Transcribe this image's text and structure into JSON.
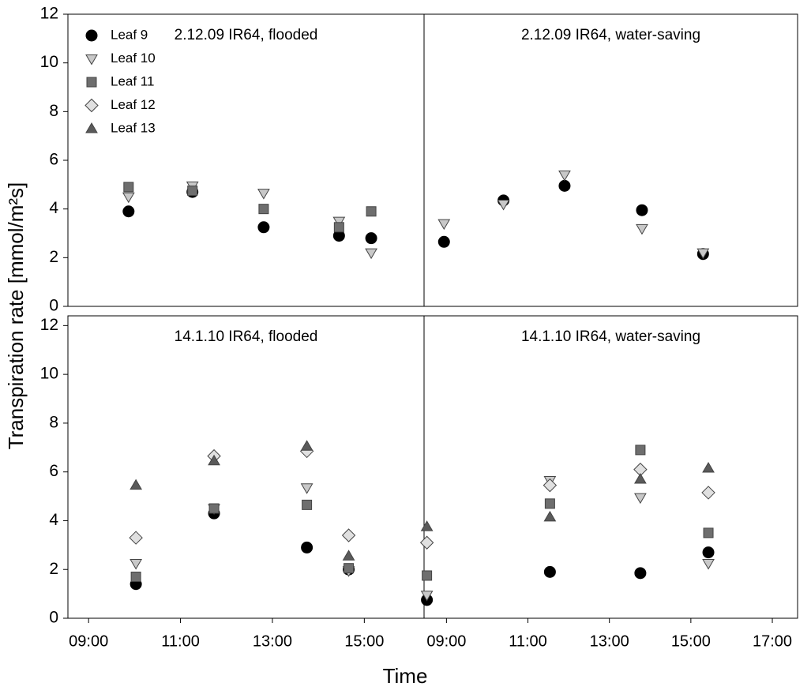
{
  "y_label": "Transpiration rate [mmol/m²s]",
  "x_label": "Time",
  "chart_data": [
    {
      "type": "scatter",
      "title": "2.12.09 IR64, flooded",
      "legend": "upper left",
      "x": [
        9.87,
        11.26,
        12.81,
        14.45,
        15.15
      ],
      "xlim": [
        8.55,
        16.3
      ],
      "ylim": [
        0,
        12
      ],
      "yticks": [
        0,
        2,
        4,
        6,
        8,
        10,
        12
      ],
      "series": [
        {
          "name": "Leaf 9",
          "marker": "circle",
          "color": "#000000",
          "values": [
            3.9,
            4.7,
            3.25,
            2.9,
            2.8
          ]
        },
        {
          "name": "Leaf 10",
          "marker": "triangle-down",
          "color": "#c8c8c8",
          "values": [
            4.5,
            4.95,
            4.65,
            3.5,
            2.2
          ]
        },
        {
          "name": "Leaf 11",
          "marker": "square",
          "color": "#6e6e6e",
          "values": [
            4.9,
            4.75,
            4.0,
            3.25,
            3.9
          ]
        },
        {
          "name": "Leaf 12",
          "marker": "diamond",
          "color": "#e0e0e0",
          "values": [
            null,
            null,
            null,
            null,
            null
          ]
        },
        {
          "name": "Leaf 13",
          "marker": "triangle-up",
          "color": "#5a5a5a",
          "values": [
            null,
            null,
            null,
            null,
            null
          ]
        }
      ]
    },
    {
      "type": "scatter",
      "title": "2.12.09 IR64, water-saving",
      "x": [
        8.94,
        10.4,
        11.9,
        13.8,
        15.3
      ],
      "xlim": [
        8.45,
        17.62
      ],
      "ylim": [
        0,
        12
      ],
      "series": [
        {
          "name": "Leaf 9",
          "marker": "circle",
          "color": "#000000",
          "values": [
            2.65,
            4.35,
            4.95,
            3.95,
            2.15
          ]
        },
        {
          "name": "Leaf 10",
          "marker": "triangle-down",
          "color": "#c8c8c8",
          "values": [
            3.4,
            4.2,
            5.4,
            3.2,
            2.2
          ]
        }
      ]
    },
    {
      "type": "scatter",
      "title": "14.1.10 IR64, flooded",
      "x": [
        10.03,
        11.73,
        13.75,
        14.66
      ],
      "xlim": [
        8.55,
        16.3
      ],
      "ylim": [
        0,
        12.4
      ],
      "yticks": [
        0,
        2,
        4,
        6,
        8,
        10,
        12
      ],
      "xticks": [
        {
          "value": 9,
          "label": "09:00"
        },
        {
          "value": 11,
          "label": "11:00"
        },
        {
          "value": 13,
          "label": "13:00"
        },
        {
          "value": 15,
          "label": "15:00"
        }
      ],
      "series": [
        {
          "name": "Leaf 9",
          "marker": "circle",
          "color": "#000000",
          "values": [
            1.4,
            4.3,
            2.9,
            2.0
          ]
        },
        {
          "name": "Leaf 10",
          "marker": "triangle-down",
          "color": "#c8c8c8",
          "values": [
            2.25,
            4.5,
            5.35,
            1.95
          ]
        },
        {
          "name": "Leaf 11",
          "marker": "square",
          "color": "#6e6e6e",
          "values": [
            1.7,
            4.5,
            4.65,
            2.05
          ]
        },
        {
          "name": "Leaf 12",
          "marker": "diamond",
          "color": "#e0e0e0",
          "values": [
            3.3,
            6.65,
            6.85,
            3.4
          ]
        },
        {
          "name": "Leaf 13",
          "marker": "triangle-up",
          "color": "#5a5a5a",
          "values": [
            5.45,
            6.45,
            7.05,
            2.55
          ]
        }
      ]
    },
    {
      "type": "scatter",
      "title": "14.1.10 IR64, water-saving",
      "x": [
        8.52,
        11.54,
        13.76,
        15.43
      ],
      "xlim": [
        8.45,
        17.62
      ],
      "ylim": [
        0,
        12.4
      ],
      "xticks": [
        {
          "value": 9,
          "label": "09:00"
        },
        {
          "value": 11,
          "label": "11:00"
        },
        {
          "value": 13,
          "label": "13:00"
        },
        {
          "value": 15,
          "label": "15:00"
        },
        {
          "value": 17,
          "label": "17:00"
        }
      ],
      "series": [
        {
          "name": "Leaf 9",
          "marker": "circle",
          "color": "#000000",
          "values": [
            0.75,
            1.9,
            1.85,
            2.7
          ]
        },
        {
          "name": "Leaf 10",
          "marker": "triangle-down",
          "color": "#c8c8c8",
          "values": [
            0.95,
            5.65,
            4.95,
            2.25
          ]
        },
        {
          "name": "Leaf 11",
          "marker": "square",
          "color": "#6e6e6e",
          "values": [
            1.75,
            4.7,
            6.9,
            3.5
          ]
        },
        {
          "name": "Leaf 12",
          "marker": "diamond",
          "color": "#e0e0e0",
          "values": [
            3.1,
            5.45,
            6.1,
            5.15
          ]
        },
        {
          "name": "Leaf 13",
          "marker": "triangle-up",
          "color": "#5a5a5a",
          "values": [
            3.75,
            4.15,
            5.7,
            6.15
          ]
        }
      ]
    }
  ]
}
